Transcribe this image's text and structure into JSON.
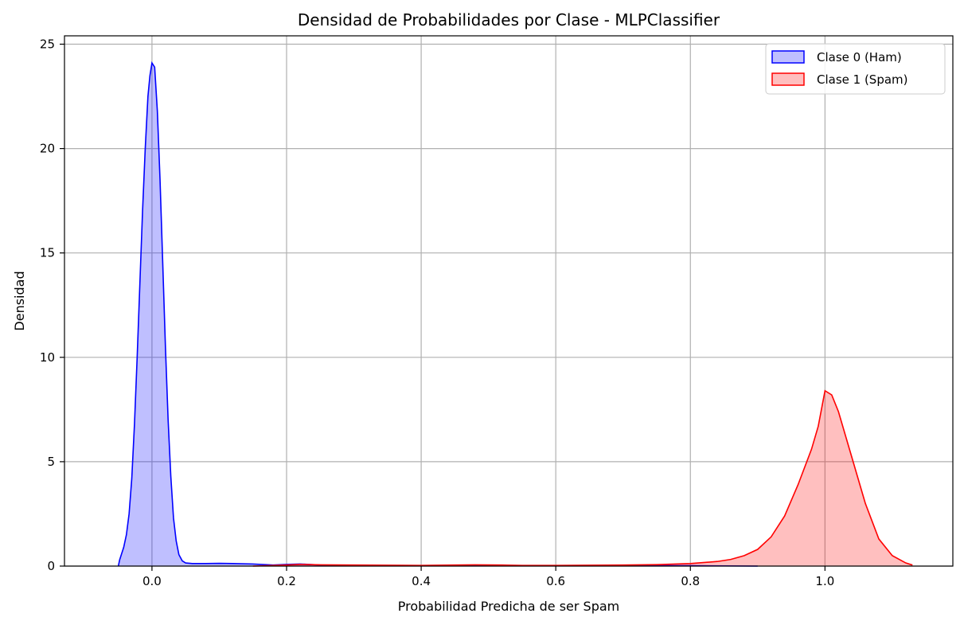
{
  "chart_data": {
    "type": "area",
    "title": "Densidad de Probabilidades por Clase - MLPClassifier",
    "xlabel": "Probabilidad Predicha de ser Spam",
    "ylabel": "Densidad",
    "xlim": [
      -0.13,
      1.19
    ],
    "ylim": [
      0,
      25.4
    ],
    "x_ticks": [
      0.0,
      0.2,
      0.4,
      0.6,
      0.8,
      1.0
    ],
    "x_tick_labels": [
      "0.0",
      "0.2",
      "0.4",
      "0.6",
      "0.8",
      "1.0"
    ],
    "y_ticks": [
      0,
      5,
      10,
      15,
      20,
      25
    ],
    "y_tick_labels": [
      "0",
      "5",
      "10",
      "15",
      "20",
      "25"
    ],
    "grid": true,
    "legend_position": "top-right",
    "series": [
      {
        "name": "Clase 0 (Ham)",
        "line_color": "#0000ff",
        "fill_color": "#0000ff",
        "fill_opacity": 0.25,
        "points": [
          [
            -0.05,
            0.0
          ],
          [
            -0.048,
            0.3
          ],
          [
            -0.045,
            0.6
          ],
          [
            -0.042,
            0.9
          ],
          [
            -0.038,
            1.5
          ],
          [
            -0.034,
            2.5
          ],
          [
            -0.03,
            4.2
          ],
          [
            -0.026,
            6.8
          ],
          [
            -0.022,
            10.0
          ],
          [
            -0.018,
            13.5
          ],
          [
            -0.014,
            17.0
          ],
          [
            -0.01,
            20.0
          ],
          [
            -0.006,
            22.5
          ],
          [
            -0.003,
            23.5
          ],
          [
            0.0,
            24.1
          ],
          [
            0.004,
            23.9
          ],
          [
            0.008,
            21.8
          ],
          [
            0.012,
            18.5
          ],
          [
            0.016,
            14.5
          ],
          [
            0.02,
            10.5
          ],
          [
            0.024,
            7.0
          ],
          [
            0.028,
            4.3
          ],
          [
            0.032,
            2.3
          ],
          [
            0.036,
            1.2
          ],
          [
            0.04,
            0.55
          ],
          [
            0.045,
            0.25
          ],
          [
            0.05,
            0.15
          ],
          [
            0.06,
            0.12
          ],
          [
            0.08,
            0.12
          ],
          [
            0.1,
            0.13
          ],
          [
            0.12,
            0.12
          ],
          [
            0.15,
            0.1
          ],
          [
            0.18,
            0.05
          ],
          [
            0.2,
            0.08
          ],
          [
            0.22,
            0.1
          ],
          [
            0.25,
            0.05
          ],
          [
            0.3,
            0.03
          ],
          [
            0.35,
            0.02
          ],
          [
            0.4,
            0.02
          ],
          [
            0.45,
            0.03
          ],
          [
            0.5,
            0.03
          ],
          [
            0.55,
            0.02
          ],
          [
            0.6,
            0.02
          ],
          [
            0.7,
            0.02
          ],
          [
            0.8,
            0.02
          ],
          [
            0.85,
            0.01
          ],
          [
            0.9,
            0.0
          ]
        ]
      },
      {
        "name": "Clase 1 (Spam)",
        "line_color": "#ff0000",
        "fill_color": "#ff0000",
        "fill_opacity": 0.25,
        "points": [
          [
            0.15,
            0.0
          ],
          [
            0.2,
            0.05
          ],
          [
            0.22,
            0.08
          ],
          [
            0.25,
            0.06
          ],
          [
            0.3,
            0.05
          ],
          [
            0.35,
            0.04
          ],
          [
            0.4,
            0.03
          ],
          [
            0.45,
            0.05
          ],
          [
            0.48,
            0.06
          ],
          [
            0.52,
            0.05
          ],
          [
            0.55,
            0.03
          ],
          [
            0.6,
            0.03
          ],
          [
            0.65,
            0.04
          ],
          [
            0.7,
            0.05
          ],
          [
            0.75,
            0.07
          ],
          [
            0.8,
            0.12
          ],
          [
            0.84,
            0.22
          ],
          [
            0.86,
            0.32
          ],
          [
            0.88,
            0.5
          ],
          [
            0.9,
            0.8
          ],
          [
            0.92,
            1.4
          ],
          [
            0.94,
            2.4
          ],
          [
            0.96,
            3.9
          ],
          [
            0.98,
            5.6
          ],
          [
            0.99,
            6.7
          ],
          [
            1.0,
            8.4
          ],
          [
            1.01,
            8.2
          ],
          [
            1.02,
            7.4
          ],
          [
            1.04,
            5.2
          ],
          [
            1.06,
            3.0
          ],
          [
            1.08,
            1.3
          ],
          [
            1.1,
            0.5
          ],
          [
            1.12,
            0.15
          ],
          [
            1.13,
            0.05
          ]
        ]
      }
    ]
  }
}
